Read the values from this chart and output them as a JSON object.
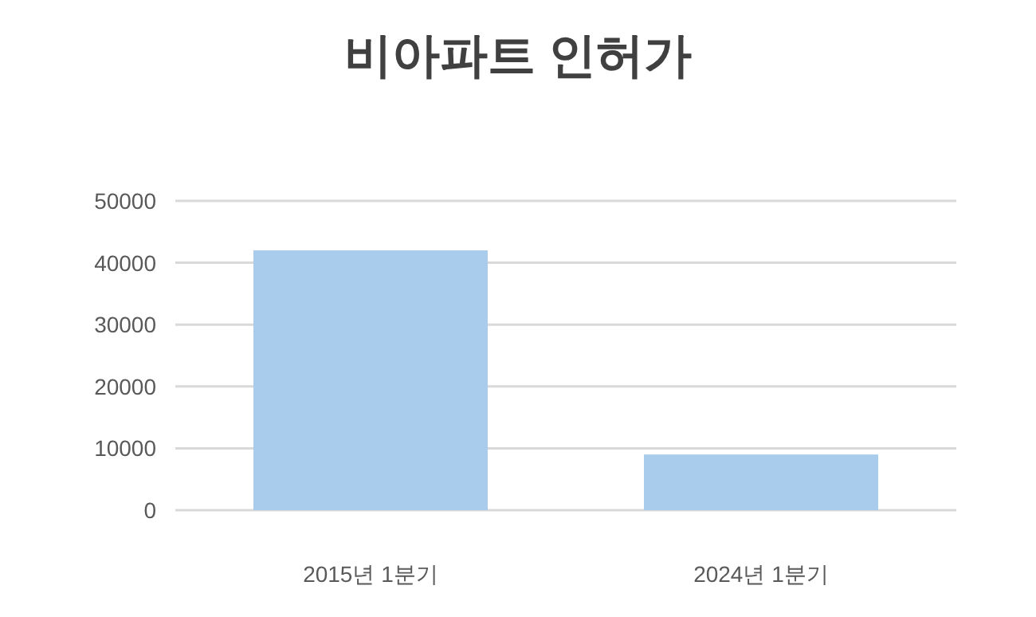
{
  "chart_data": {
    "type": "bar",
    "title": "비아파트 인허가",
    "categories": [
      "2015년 1분기",
      "2024년 1분기"
    ],
    "values": [
      42000,
      9000
    ],
    "color": "#a9cbec",
    "ylim": [
      0,
      50000
    ],
    "yticks": [
      0,
      10000,
      20000,
      30000,
      40000,
      50000
    ],
    "grid": "y"
  }
}
